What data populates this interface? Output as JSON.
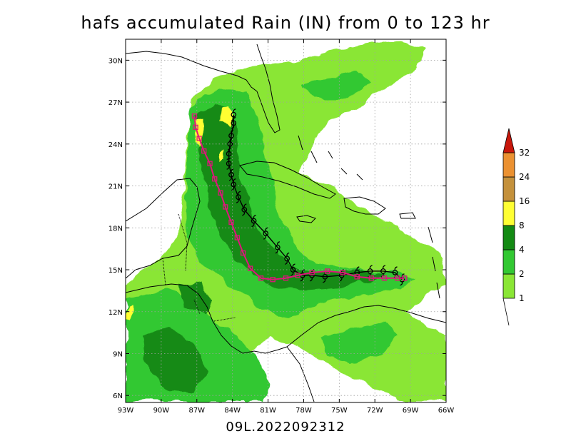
{
  "title": "hafs accumulated Rain (IN) from 0 to 123 hr",
  "footer": "09L.2022092312",
  "map": {
    "lon_range": [
      -93,
      -66
    ],
    "lat_range": [
      5.5,
      31.5
    ],
    "lon_ticks": [
      "93W",
      "90W",
      "87W",
      "84W",
      "81W",
      "78W",
      "75W",
      "72W",
      "69W",
      "66W"
    ],
    "lat_ticks": [
      "6N",
      "9N",
      "12N",
      "15N",
      "18N",
      "21N",
      "24N",
      "27N",
      "30N"
    ],
    "grid": true
  },
  "colorbar": {
    "labels": [
      "1",
      "2",
      "4",
      "8",
      "16",
      "24",
      "32"
    ],
    "colors": [
      "#8ae635",
      "#32c832",
      "#138a13",
      "#ffff33",
      "#c4913c",
      "#eb9131",
      "#c8170b"
    ]
  },
  "tracks": {
    "black": {
      "color": "#000000",
      "marker": "hurricane symbol",
      "points": [
        [
          -83.9,
          26.1
        ],
        [
          -83.9,
          25.5
        ],
        [
          -84.1,
          24.6
        ],
        [
          -84.2,
          24.0
        ],
        [
          -84.3,
          23.3
        ],
        [
          -84.3,
          22.6
        ],
        [
          -84.1,
          21.8
        ],
        [
          -83.9,
          21.1
        ],
        [
          -83.5,
          20.2
        ],
        [
          -83.0,
          19.3
        ],
        [
          -82.2,
          18.5
        ],
        [
          -81.2,
          17.6
        ],
        [
          -80.2,
          16.6
        ],
        [
          -79.4,
          15.8
        ],
        [
          -78.9,
          15.0
        ],
        [
          -78.1,
          14.6
        ],
        [
          -77.3,
          14.6
        ],
        [
          -76.2,
          14.5
        ],
        [
          -74.8,
          14.6
        ],
        [
          -73.5,
          14.8
        ],
        [
          -72.4,
          14.9
        ],
        [
          -71.3,
          14.9
        ],
        [
          -70.3,
          14.8
        ],
        [
          -69.7,
          14.3
        ]
      ]
    },
    "magenta": {
      "color": "#e0157c",
      "marker": "square",
      "points": [
        [
          -87.2,
          26.0
        ],
        [
          -87.1,
          25.2
        ],
        [
          -86.8,
          24.4
        ],
        [
          -86.4,
          23.5
        ],
        [
          -85.9,
          22.6
        ],
        [
          -85.5,
          21.5
        ],
        [
          -85.0,
          20.5
        ],
        [
          -84.6,
          19.5
        ],
        [
          -84.1,
          18.4
        ],
        [
          -83.6,
          17.3
        ],
        [
          -83.1,
          16.2
        ],
        [
          -82.5,
          15.1
        ],
        [
          -81.6,
          14.4
        ],
        [
          -80.6,
          14.3
        ],
        [
          -79.5,
          14.4
        ],
        [
          -78.5,
          14.6
        ],
        [
          -77.3,
          14.8
        ],
        [
          -76.0,
          14.9
        ],
        [
          -74.7,
          14.8
        ],
        [
          -73.5,
          14.5
        ],
        [
          -72.3,
          14.4
        ],
        [
          -71.2,
          14.4
        ],
        [
          -70.1,
          14.4
        ],
        [
          -69.5,
          14.4
        ]
      ]
    }
  }
}
